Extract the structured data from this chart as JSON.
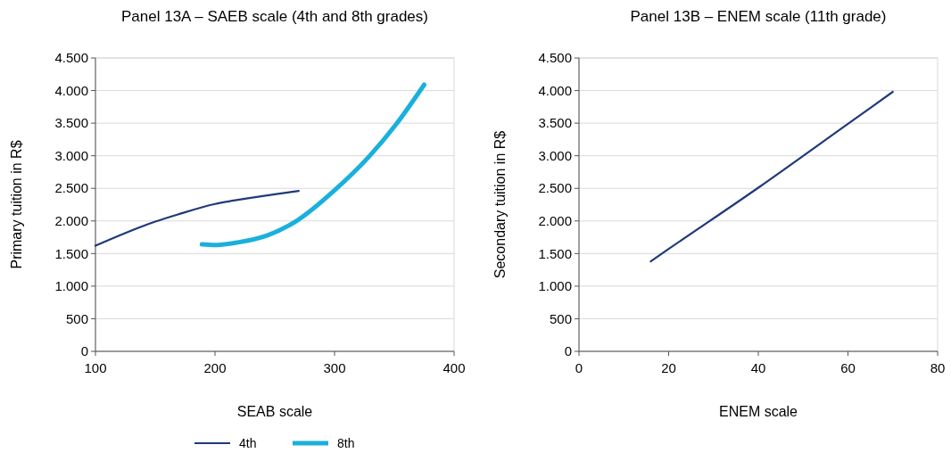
{
  "chart_data": [
    {
      "type": "line",
      "title": "Panel 13A – SAEB scale (4th and 8th grades)",
      "xlabel": "SEAB scale",
      "ylabel": "Primary tuition in R$",
      "xlim": [
        100,
        400
      ],
      "xticks": [
        100,
        200,
        300,
        400
      ],
      "ylim": [
        0,
        4500
      ],
      "yticks": [
        {
          "value": 0,
          "label": "0"
        },
        {
          "value": 500,
          "label": "500"
        },
        {
          "value": 1000,
          "label": "1.000"
        },
        {
          "value": 1500,
          "label": "1.500"
        },
        {
          "value": 2000,
          "label": "2.000"
        },
        {
          "value": 2500,
          "label": "2.500"
        },
        {
          "value": 3000,
          "label": "3.000"
        },
        {
          "value": 3500,
          "label": "3.500"
        },
        {
          "value": 4000,
          "label": "4.000"
        },
        {
          "value": 4500,
          "label": "4.500"
        }
      ],
      "grid": "y",
      "legend": "bottom",
      "series": [
        {
          "name": "4th",
          "color": "#1f3a7a",
          "x": [
            100,
            150,
            169,
            200,
            225,
            250,
            270
          ],
          "values": [
            1620,
            1990,
            2100,
            2260,
            2340,
            2410,
            2460
          ]
        },
        {
          "name": "8th",
          "color": "#1ab0dc",
          "x": [
            189,
            200,
            219,
            244,
            269,
            300,
            329,
            351,
            375
          ],
          "values": [
            1640,
            1630,
            1670,
            1780,
            2010,
            2470,
            2990,
            3470,
            4090
          ]
        }
      ]
    },
    {
      "type": "line",
      "title": "Panel 13B – ENEM scale (11th grade)",
      "xlabel": "ENEM scale",
      "ylabel": "Secondary tuition in R$",
      "xlim": [
        0,
        80
      ],
      "xticks": [
        0,
        20,
        40,
        60,
        80
      ],
      "ylim": [
        0,
        4500
      ],
      "yticks": [
        {
          "value": 0,
          "label": "0"
        },
        {
          "value": 500,
          "label": "500"
        },
        {
          "value": 1000,
          "label": "1.000"
        },
        {
          "value": 1500,
          "label": "1.500"
        },
        {
          "value": 2000,
          "label": "2.000"
        },
        {
          "value": 2500,
          "label": "2.500"
        },
        {
          "value": 3000,
          "label": "3.000"
        },
        {
          "value": 3500,
          "label": "3.500"
        },
        {
          "value": 4000,
          "label": "4.000"
        },
        {
          "value": 4500,
          "label": "4.500"
        }
      ],
      "grid": "y",
      "series": [
        {
          "color": "#1f3a7a",
          "x": [
            16,
            20,
            40,
            60,
            70
          ],
          "values": [
            1380,
            1570,
            2510,
            3490,
            3980
          ]
        }
      ]
    }
  ]
}
